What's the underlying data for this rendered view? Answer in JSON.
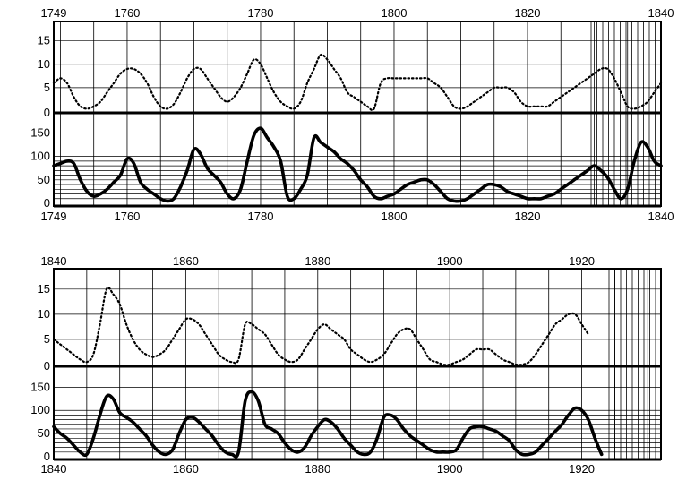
{
  "chart_data": [
    {
      "type": "line",
      "x_range": [
        1749,
        1840
      ],
      "top_tick_labels": [
        "1749",
        "1760",
        "1780",
        "1800",
        "1820",
        "1840"
      ],
      "bottom_tick_labels": [
        "1749",
        "1760",
        "1780",
        "1800",
        "1820",
        "1840"
      ],
      "upper_panel": {
        "ylim": [
          0,
          18
        ],
        "yticks": [
          "0",
          "5",
          "10",
          "15"
        ],
        "series": [
          {
            "style": "dotted",
            "x": [
              1749,
              1750,
              1751,
              1752,
              1753,
              1754,
              1755,
              1756,
              1757,
              1758,
              1759,
              1760,
              1761,
              1762,
              1763,
              1764,
              1765,
              1766,
              1767,
              1768,
              1769,
              1770,
              1771,
              1772,
              1773,
              1774,
              1775,
              1776,
              1777,
              1778,
              1779,
              1780,
              1781,
              1782,
              1783,
              1784,
              1785,
              1786,
              1787,
              1788,
              1789,
              1790,
              1791,
              1792,
              1793,
              1794,
              1795,
              1796,
              1797,
              1798,
              1799,
              1800,
              1801,
              1802,
              1803,
              1804,
              1805,
              1806,
              1807,
              1808,
              1809,
              1810,
              1811,
              1812,
              1813,
              1814,
              1815,
              1816,
              1817,
              1818,
              1819,
              1820,
              1821,
              1822,
              1823,
              1824,
              1825,
              1826,
              1827,
              1828,
              1829,
              1830,
              1831,
              1832,
              1833,
              1834,
              1835,
              1836,
              1837,
              1838,
              1839,
              1840
            ],
            "y": [
              6,
              7,
              6,
              3,
              1,
              0.5,
              1,
              2,
              4,
              6,
              8,
              9,
              9,
              8,
              6,
              3,
              1,
              0.5,
              1.5,
              4,
              7,
              9,
              9,
              7,
              5,
              3,
              2,
              3,
              5,
              8,
              11,
              10,
              7,
              4,
              2,
              1,
              0.5,
              2,
              6,
              9,
              12,
              11,
              9,
              7,
              4,
              3,
              2,
              1,
              0.5,
              6,
              7,
              7,
              7,
              7,
              7,
              7,
              7,
              6,
              5,
              3,
              1,
              0.5,
              1,
              2,
              3,
              4,
              5,
              5,
              5,
              4,
              2,
              1,
              1,
              1,
              1,
              2,
              3,
              4,
              5,
              6,
              7,
              8,
              9,
              9,
              7,
              4,
              1,
              0.5,
              1,
              2,
              4,
              6
            ]
          }
        ]
      },
      "lower_panel": {
        "ylim": [
          0,
          170
        ],
        "yticks": [
          "0",
          "50",
          "100",
          "150"
        ],
        "series": [
          {
            "style": "solid",
            "x": [
              1749,
              1750,
              1751,
              1752,
              1753,
              1754,
              1755,
              1756,
              1757,
              1758,
              1759,
              1760,
              1761,
              1762,
              1763,
              1764,
              1765,
              1766,
              1767,
              1768,
              1769,
              1770,
              1771,
              1772,
              1773,
              1774,
              1775,
              1776,
              1777,
              1778,
              1779,
              1780,
              1781,
              1782,
              1783,
              1784,
              1785,
              1786,
              1787,
              1788,
              1789,
              1790,
              1791,
              1792,
              1793,
              1794,
              1795,
              1796,
              1797,
              1798,
              1799,
              1800,
              1801,
              1802,
              1803,
              1804,
              1805,
              1806,
              1807,
              1808,
              1809,
              1810,
              1811,
              1812,
              1813,
              1814,
              1815,
              1816,
              1817,
              1818,
              1819,
              1820,
              1821,
              1822,
              1823,
              1824,
              1825,
              1826,
              1827,
              1828,
              1829,
              1830,
              1831,
              1832,
              1833,
              1834,
              1835,
              1836,
              1837,
              1838,
              1839,
              1840
            ],
            "y": [
              80,
              85,
              90,
              85,
              50,
              25,
              15,
              20,
              30,
              45,
              60,
              95,
              85,
              45,
              30,
              20,
              10,
              5,
              10,
              35,
              70,
              115,
              105,
              75,
              60,
              45,
              20,
              10,
              30,
              90,
              145,
              160,
              140,
              120,
              90,
              15,
              10,
              30,
              60,
              140,
              130,
              120,
              110,
              95,
              85,
              70,
              50,
              35,
              15,
              10,
              15,
              20,
              30,
              40,
              45,
              50,
              50,
              40,
              25,
              10,
              5,
              5,
              10,
              20,
              30,
              40,
              40,
              35,
              25,
              20,
              15,
              10,
              10,
              10,
              15,
              20,
              30,
              40,
              50,
              60,
              70,
              80,
              70,
              55,
              30,
              10,
              30,
              90,
              130,
              120,
              90,
              80
            ]
          }
        ]
      }
    },
    {
      "type": "line",
      "x_range": [
        1840,
        1932
      ],
      "top_tick_labels": [
        "1840",
        "1860",
        "1880",
        "1900",
        "1920"
      ],
      "bottom_tick_labels": [
        "1840",
        "1860",
        "1880",
        "1900",
        "1920"
      ],
      "upper_panel": {
        "ylim": [
          0,
          18
        ],
        "yticks": [
          "0",
          "5",
          "10",
          "15"
        ],
        "series": [
          {
            "style": "dotted",
            "x": [
              1840,
              1841,
              1842,
              1843,
              1844,
              1845,
              1846,
              1847,
              1848,
              1849,
              1850,
              1851,
              1852,
              1853,
              1854,
              1855,
              1856,
              1857,
              1858,
              1859,
              1860,
              1861,
              1862,
              1863,
              1864,
              1865,
              1866,
              1867,
              1868,
              1869,
              1870,
              1871,
              1872,
              1873,
              1874,
              1875,
              1876,
              1877,
              1878,
              1879,
              1880,
              1881,
              1882,
              1883,
              1884,
              1885,
              1886,
              1887,
              1888,
              1889,
              1890,
              1891,
              1892,
              1893,
              1894,
              1895,
              1896,
              1897,
              1898,
              1899,
              1900,
              1901,
              1902,
              1903,
              1904,
              1905,
              1906,
              1907,
              1908,
              1909,
              1910,
              1911,
              1912,
              1913,
              1914,
              1915,
              1916,
              1917,
              1918,
              1919,
              1920,
              1921
            ],
            "y": [
              5,
              4,
              3,
              2,
              1,
              0.5,
              2,
              8,
              15,
              14,
              12,
              8,
              5,
              3,
              2,
              1.5,
              2,
              3,
              5,
              7,
              9,
              9,
              8,
              6,
              4,
              2,
              1,
              0.5,
              1,
              8,
              8,
              7,
              6,
              4,
              2,
              1,
              0.5,
              1,
              3,
              5,
              7,
              8,
              7,
              6,
              5,
              3,
              2,
              1,
              0.5,
              1,
              2,
              4,
              6,
              7,
              7,
              5,
              3,
              1,
              0.5,
              0,
              0,
              0.5,
              1,
              2,
              3,
              3,
              3,
              2,
              1,
              0.5,
              0,
              0,
              0.5,
              2,
              4,
              6,
              8,
              9,
              10,
              10,
              8,
              6
            ]
          }
        ]
      },
      "lower_panel": {
        "ylim": [
          0,
          170
        ],
        "yticks": [
          "0",
          "50",
          "100",
          "150"
        ],
        "series": [
          {
            "style": "solid",
            "x": [
              1840,
              1841,
              1842,
              1843,
              1844,
              1845,
              1846,
              1847,
              1848,
              1849,
              1850,
              1851,
              1852,
              1853,
              1854,
              1855,
              1856,
              1857,
              1858,
              1859,
              1860,
              1861,
              1862,
              1863,
              1864,
              1865,
              1866,
              1867,
              1868,
              1869,
              1870,
              1871,
              1872,
              1873,
              1874,
              1875,
              1876,
              1877,
              1878,
              1879,
              1880,
              1881,
              1882,
              1883,
              1884,
              1885,
              1886,
              1887,
              1888,
              1889,
              1890,
              1891,
              1892,
              1893,
              1894,
              1895,
              1896,
              1897,
              1898,
              1899,
              1900,
              1901,
              1902,
              1903,
              1904,
              1905,
              1906,
              1907,
              1908,
              1909,
              1910,
              1911,
              1912,
              1913,
              1914,
              1915,
              1916,
              1917,
              1918,
              1919,
              1920,
              1921,
              1922,
              1923
            ],
            "y": [
              65,
              50,
              40,
              25,
              10,
              5,
              40,
              90,
              130,
              125,
              95,
              85,
              75,
              60,
              45,
              25,
              10,
              5,
              15,
              50,
              80,
              85,
              75,
              60,
              45,
              25,
              10,
              5,
              10,
              120,
              140,
              120,
              70,
              60,
              50,
              30,
              15,
              10,
              20,
              45,
              65,
              80,
              75,
              60,
              40,
              25,
              10,
              5,
              10,
              40,
              85,
              90,
              80,
              60,
              45,
              35,
              25,
              15,
              10,
              10,
              10,
              15,
              40,
              60,
              65,
              65,
              60,
              55,
              45,
              35,
              15,
              5,
              5,
              10,
              25,
              40,
              55,
              70,
              90,
              105,
              100,
              80,
              40,
              5
            ]
          }
        ]
      }
    }
  ]
}
